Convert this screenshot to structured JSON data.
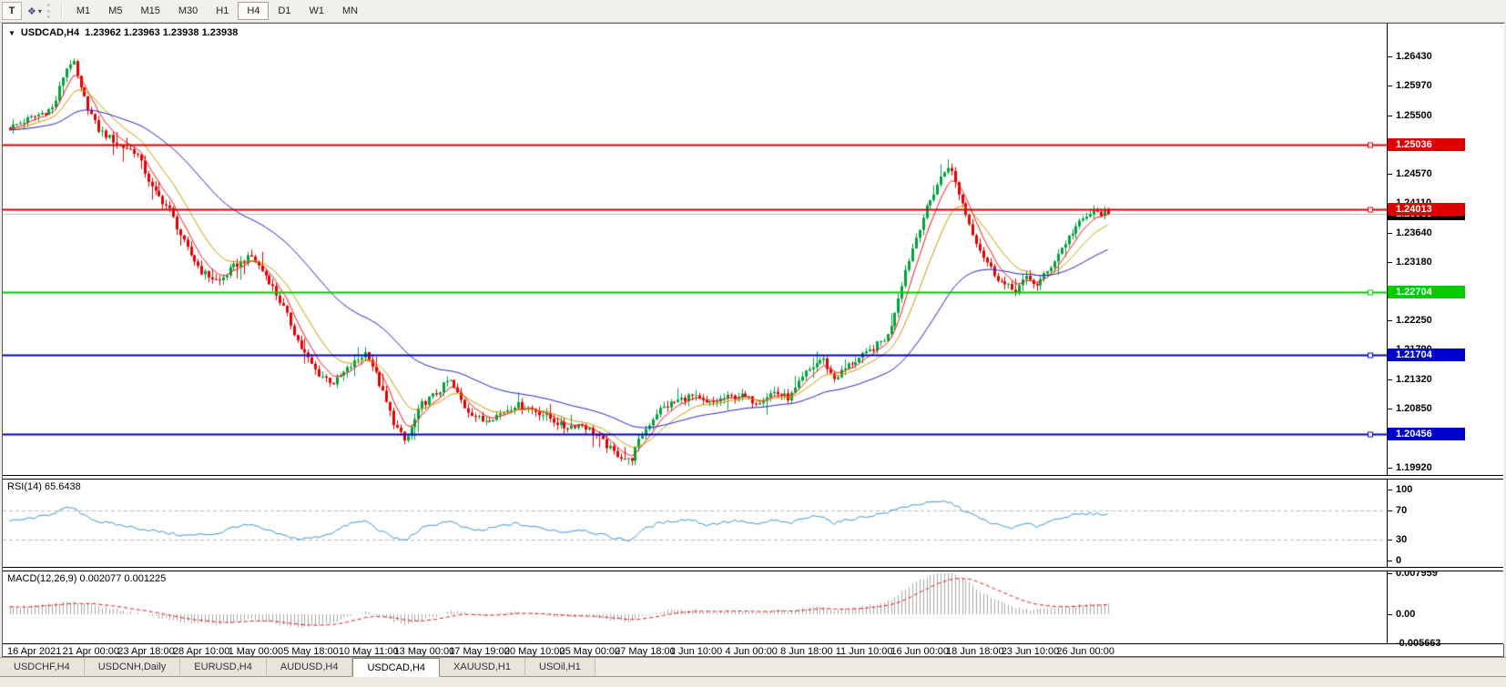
{
  "toolbar": {
    "text_tool_label": "T",
    "timeframes": [
      "M1",
      "M5",
      "M15",
      "M30",
      "H1",
      "H4",
      "D1",
      "W1",
      "MN"
    ],
    "active_timeframe": "H4"
  },
  "icons": {
    "collapse": "▼",
    "dropdown": "▾",
    "drawing_tool": "❖"
  },
  "chart_header": {
    "symbol": "USDCAD,H4",
    "quotes": "1.23962 1.23963 1.23938 1.23938"
  },
  "chart_data": {
    "type": "candlestick",
    "symbol": "USDCAD",
    "timeframe": "H4",
    "quote": {
      "open": 1.23962,
      "high": 1.23963,
      "low": 1.23938,
      "close": 1.23938
    },
    "price_axis": {
      "decimals": 5,
      "ticks": [
        1.2643,
        1.2597,
        1.255,
        1.2457,
        1.2411,
        1.2364,
        1.2318,
        1.2225,
        1.2179,
        1.2132,
        1.2085,
        1.2039,
        1.1992
      ]
    },
    "price_range": {
      "top": 1.26948,
      "bottom": 1.19805
    },
    "levels": [
      {
        "price": 1.25036,
        "color": "#dd0000",
        "type": "resistance"
      },
      {
        "price": 1.24013,
        "color": "#dd0000",
        "type": "resistance"
      },
      {
        "price": 1.22704,
        "color": "#00cc00",
        "type": "support"
      },
      {
        "price": 1.21704,
        "color": "#0000cc",
        "type": "support"
      },
      {
        "price": 1.20456,
        "color": "#0000cc",
        "type": "support"
      }
    ],
    "bid": {
      "price": 1.23938,
      "tag_bg": "#000000",
      "line_color": "#bdbdbd"
    },
    "candles": {
      "count": 310,
      "up_color": "#00a33c",
      "down_color": "#e40000"
    },
    "ma_lines": [
      {
        "label": "fast",
        "color": "#ff1111",
        "alpha": 0.28
      },
      {
        "label": "mid",
        "color": "#cc9900",
        "alpha": 0.13
      },
      {
        "label": "slow",
        "color": "#2222cc",
        "alpha": 0.042
      }
    ],
    "close_path": [
      [
        0.0,
        1.253
      ],
      [
        0.02,
        1.2546
      ],
      [
        0.04,
        1.2562
      ],
      [
        0.05,
        1.262
      ],
      [
        0.057,
        1.2638
      ],
      [
        0.065,
        1.2588
      ],
      [
        0.08,
        1.2528
      ],
      [
        0.1,
        1.2502
      ],
      [
        0.115,
        1.2492
      ],
      [
        0.13,
        1.2432
      ],
      [
        0.145,
        1.2402
      ],
      [
        0.16,
        1.2342
      ],
      [
        0.175,
        1.2302
      ],
      [
        0.19,
        1.2286
      ],
      [
        0.205,
        1.2312
      ],
      [
        0.22,
        1.2326
      ],
      [
        0.235,
        1.2292
      ],
      [
        0.25,
        1.2242
      ],
      [
        0.265,
        1.2182
      ],
      [
        0.28,
        1.2142
      ],
      [
        0.295,
        1.2126
      ],
      [
        0.31,
        1.2152
      ],
      [
        0.325,
        1.2176
      ],
      [
        0.335,
        1.2132
      ],
      [
        0.35,
        1.2062
      ],
      [
        0.36,
        1.2032
      ],
      [
        0.375,
        1.2092
      ],
      [
        0.39,
        1.2112
      ],
      [
        0.4,
        1.2132
      ],
      [
        0.415,
        1.2086
      ],
      [
        0.43,
        1.2066
      ],
      [
        0.445,
        1.2076
      ],
      [
        0.46,
        1.2092
      ],
      [
        0.475,
        1.2086
      ],
      [
        0.49,
        1.2072
      ],
      [
        0.505,
        1.2056
      ],
      [
        0.52,
        1.2062
      ],
      [
        0.535,
        1.2042
      ],
      [
        0.55,
        1.2016
      ],
      [
        0.565,
        1.2002
      ],
      [
        0.575,
        1.2042
      ],
      [
        0.59,
        1.2082
      ],
      [
        0.605,
        1.2096
      ],
      [
        0.62,
        1.2106
      ],
      [
        0.635,
        1.2092
      ],
      [
        0.65,
        1.2102
      ],
      [
        0.665,
        1.2106
      ],
      [
        0.68,
        1.2096
      ],
      [
        0.695,
        1.2112
      ],
      [
        0.71,
        1.2102
      ],
      [
        0.725,
        1.2142
      ],
      [
        0.74,
        1.2166
      ],
      [
        0.75,
        1.2132
      ],
      [
        0.765,
        1.2156
      ],
      [
        0.78,
        1.2172
      ],
      [
        0.8,
        1.2202
      ],
      [
        0.815,
        1.2302
      ],
      [
        0.83,
        1.2382
      ],
      [
        0.845,
        1.2442
      ],
      [
        0.855,
        1.2472
      ],
      [
        0.865,
        1.2422
      ],
      [
        0.875,
        1.2372
      ],
      [
        0.885,
        1.2332
      ],
      [
        0.895,
        1.2302
      ],
      [
        0.905,
        1.2282
      ],
      [
        0.915,
        1.2272
      ],
      [
        0.925,
        1.2292
      ],
      [
        0.935,
        1.2282
      ],
      [
        0.945,
        1.2302
      ],
      [
        0.955,
        1.2332
      ],
      [
        0.97,
        1.2372
      ],
      [
        0.985,
        1.2396
      ],
      [
        1.0,
        1.2394
      ]
    ],
    "time_labels": [
      "16 Apr 2021",
      "21 Apr 00:00",
      "23 Apr 18:00",
      "28 Apr 10:00",
      "1 May 00:00",
      "5 May 18:00",
      "10 May 11:00",
      "13 May 00:00",
      "17 May 19:00",
      "20 May 10:00",
      "25 May 00:00",
      "27 May 18:00",
      "1 Jun 10:00",
      "4 Jun 00:00",
      "8 Jun 18:00",
      "11 Jun 10:00",
      "16 Jun 00:00",
      "18 Jun 18:00",
      "23 Jun 10:00",
      "26 Jun 00:00"
    ],
    "rsi": {
      "label": "RSI(14) 65.6438",
      "period": 14,
      "value": 65.6438,
      "axis_ticks": [
        100,
        70,
        30,
        0
      ],
      "dashed_levels": [
        70,
        30
      ],
      "line_color": "#3a96d7",
      "path": [
        [
          0.0,
          55
        ],
        [
          0.03,
          62
        ],
        [
          0.055,
          75
        ],
        [
          0.08,
          55
        ],
        [
          0.1,
          50
        ],
        [
          0.13,
          42
        ],
        [
          0.16,
          35
        ],
        [
          0.19,
          38
        ],
        [
          0.205,
          48
        ],
        [
          0.22,
          50
        ],
        [
          0.235,
          42
        ],
        [
          0.25,
          35
        ],
        [
          0.265,
          30
        ],
        [
          0.28,
          33
        ],
        [
          0.295,
          40
        ],
        [
          0.31,
          52
        ],
        [
          0.325,
          56
        ],
        [
          0.335,
          44
        ],
        [
          0.35,
          32
        ],
        [
          0.36,
          28
        ],
        [
          0.375,
          45
        ],
        [
          0.39,
          52
        ],
        [
          0.4,
          56
        ],
        [
          0.415,
          45
        ],
        [
          0.43,
          42
        ],
        [
          0.445,
          48
        ],
        [
          0.46,
          52
        ],
        [
          0.475,
          48
        ],
        [
          0.49,
          44
        ],
        [
          0.505,
          40
        ],
        [
          0.52,
          44
        ],
        [
          0.535,
          38
        ],
        [
          0.55,
          32
        ],
        [
          0.565,
          28
        ],
        [
          0.575,
          42
        ],
        [
          0.59,
          52
        ],
        [
          0.605,
          56
        ],
        [
          0.62,
          58
        ],
        [
          0.635,
          50
        ],
        [
          0.65,
          54
        ],
        [
          0.665,
          56
        ],
        [
          0.68,
          50
        ],
        [
          0.695,
          57
        ],
        [
          0.71,
          52
        ],
        [
          0.725,
          60
        ],
        [
          0.74,
          64
        ],
        [
          0.75,
          52
        ],
        [
          0.765,
          58
        ],
        [
          0.78,
          62
        ],
        [
          0.8,
          68
        ],
        [
          0.815,
          76
        ],
        [
          0.83,
          80
        ],
        [
          0.845,
          82
        ],
        [
          0.855,
          83
        ],
        [
          0.865,
          74
        ],
        [
          0.875,
          66
        ],
        [
          0.885,
          58
        ],
        [
          0.895,
          52
        ],
        [
          0.905,
          48
        ],
        [
          0.915,
          46
        ],
        [
          0.925,
          52
        ],
        [
          0.935,
          48
        ],
        [
          0.945,
          54
        ],
        [
          0.955,
          60
        ],
        [
          0.97,
          64
        ],
        [
          0.985,
          66
        ],
        [
          1.0,
          65.6
        ]
      ]
    },
    "macd": {
      "label": "MACD(12,26,9) 0.002077 0.001225",
      "macd_value": 0.002077,
      "signal_value": 0.001225,
      "axis_ticks": [
        "0.007959",
        "0.00",
        "-0.005663"
      ],
      "axis_tick_values": [
        0.007959,
        0,
        -0.005663
      ],
      "histogram_color": "#a8a8a8",
      "signal_color": "#ee1111",
      "path": [
        [
          0.0,
          0.0012
        ],
        [
          0.03,
          0.0018
        ],
        [
          0.055,
          0.0024
        ],
        [
          0.08,
          0.0016
        ],
        [
          0.1,
          0.0008
        ],
        [
          0.13,
          -0.0004
        ],
        [
          0.16,
          -0.0016
        ],
        [
          0.19,
          -0.002
        ],
        [
          0.205,
          -0.0014
        ],
        [
          0.22,
          -0.001
        ],
        [
          0.235,
          -0.0014
        ],
        [
          0.25,
          -0.002
        ],
        [
          0.265,
          -0.0024
        ],
        [
          0.28,
          -0.0022
        ],
        [
          0.295,
          -0.0014
        ],
        [
          0.31,
          -0.0004
        ],
        [
          0.325,
          0.0004
        ],
        [
          0.335,
          -0.0002
        ],
        [
          0.35,
          -0.0014
        ],
        [
          0.36,
          -0.002
        ],
        [
          0.375,
          -0.0012
        ],
        [
          0.39,
          -0.0002
        ],
        [
          0.4,
          0.0006
        ],
        [
          0.415,
          0.0002
        ],
        [
          0.43,
          -0.0004
        ],
        [
          0.445,
          0.0
        ],
        [
          0.46,
          0.0004
        ],
        [
          0.475,
          0.0002
        ],
        [
          0.49,
          -0.0002
        ],
        [
          0.505,
          -0.0006
        ],
        [
          0.52,
          -0.0004
        ],
        [
          0.535,
          -0.0008
        ],
        [
          0.55,
          -0.0012
        ],
        [
          0.565,
          -0.0014
        ],
        [
          0.575,
          -0.0006
        ],
        [
          0.59,
          0.0004
        ],
        [
          0.605,
          0.0008
        ],
        [
          0.62,
          0.001
        ],
        [
          0.635,
          0.0004
        ],
        [
          0.65,
          0.0006
        ],
        [
          0.665,
          0.0008
        ],
        [
          0.68,
          0.0004
        ],
        [
          0.695,
          0.0008
        ],
        [
          0.71,
          0.0006
        ],
        [
          0.725,
          0.0012
        ],
        [
          0.74,
          0.0016
        ],
        [
          0.75,
          0.0008
        ],
        [
          0.765,
          0.0012
        ],
        [
          0.78,
          0.0016
        ],
        [
          0.8,
          0.0024
        ],
        [
          0.815,
          0.0048
        ],
        [
          0.83,
          0.0068
        ],
        [
          0.845,
          0.0078
        ],
        [
          0.855,
          0.008
        ],
        [
          0.865,
          0.0072
        ],
        [
          0.875,
          0.0058
        ],
        [
          0.885,
          0.0042
        ],
        [
          0.895,
          0.003
        ],
        [
          0.905,
          0.002
        ],
        [
          0.915,
          0.0013
        ],
        [
          0.925,
          0.001
        ],
        [
          0.935,
          0.0008
        ],
        [
          0.945,
          0.001
        ],
        [
          0.955,
          0.0013
        ],
        [
          0.97,
          0.0017
        ],
        [
          0.985,
          0.002
        ],
        [
          1.0,
          0.002077
        ]
      ]
    }
  },
  "tabs": [
    "USDCHF,H4",
    "USDCNH,Daily",
    "EURUSD,H4",
    "AUDUSD,H4",
    "USDCAD,H4",
    "XAUUSD,H1",
    "USOil,H1"
  ],
  "active_tab": "USDCAD,H4"
}
